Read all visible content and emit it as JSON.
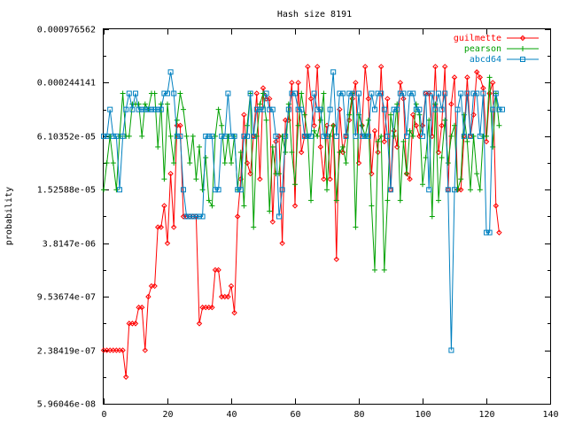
{
  "chart_data": {
    "type": "line",
    "title": "Hash size 8191",
    "xlabel": "",
    "ylabel": "probability",
    "xlim": [
      0,
      140
    ],
    "ylim_log2": [
      -24,
      -10
    ],
    "y_scale": "log2",
    "x_ticks": [
      0,
      20,
      40,
      60,
      80,
      100,
      120,
      140
    ],
    "y_ticks": [
      {
        "label": "0.000976562",
        "value": 0.000976562
      },
      {
        "label": "0.000244141",
        "value": 0.000244141
      },
      {
        "label": "6.10352e-05",
        "value": 6.10352e-05
      },
      {
        "label": "1.52588e-05",
        "value": 1.52588e-05
      },
      {
        "label": "3.8147e-06",
        "value": 3.8147e-06
      },
      {
        "label": "9.53674e-07",
        "value": 9.53674e-07
      },
      {
        "label": "2.38419e-07",
        "value": 2.38419e-07
      },
      {
        "label": "5.96046e-08",
        "value": 5.96046e-08
      }
    ],
    "grid": false,
    "legend_position": "top-right",
    "series": [
      {
        "name": "guilmette",
        "color": "#ff0000",
        "marker": "diamond",
        "x_start": 0,
        "log2_values": [
          -22,
          -22,
          -22,
          -22,
          -22,
          -22,
          -22,
          -23,
          -21,
          -21,
          -21,
          -20.4,
          -20.4,
          -22,
          -20,
          -19.6,
          -19.6,
          -17.4,
          -17.4,
          -16.6,
          -18,
          -15.4,
          -17.4,
          -13.6,
          -13.6,
          -17,
          -17,
          -17,
          -17,
          -17,
          -21,
          -20.4,
          -20.4,
          -20.4,
          -20.4,
          -19,
          -19,
          -20,
          -20,
          -20,
          -19.6,
          -20.6,
          -17,
          -15.6,
          -13.2,
          -15,
          -15.4,
          -14,
          -12.4,
          -15.6,
          -12.2,
          -12.6,
          -12.6,
          -17.2,
          -14.2,
          -14,
          -18,
          -13.4,
          -13.4,
          -12,
          -16.6,
          -12,
          -14.6,
          -14,
          -11.4,
          -12.6,
          -13.6,
          -11.4,
          -14.4,
          -15.6,
          -13.6,
          -15.6,
          -13.6,
          -18.6,
          -13,
          -14.6,
          -14,
          -13.4,
          -12.6,
          -12,
          -15,
          -13.6,
          -11.4,
          -12.6,
          -15.4,
          -13.8,
          -14.6,
          -11.4,
          -14.2,
          -12.6,
          -16,
          -13.8,
          -14.4,
          -12,
          -12.6,
          -15.4,
          -15.6,
          -13.2,
          -13.6,
          -14,
          -13.6,
          -12.4,
          -12.4,
          -14,
          -11.4,
          -14.6,
          -13.6,
          -11.4,
          -16,
          -12.8,
          -11.8,
          -16,
          -16,
          -14,
          -11.8,
          -14,
          -13.2,
          -11.6,
          -11.8,
          -12.2,
          -14.2,
          -12.4,
          -12,
          -16.6,
          -17.6
        ]
      },
      {
        "name": "pearson",
        "color": "#00a000",
        "marker": "plus",
        "x_start": 0,
        "log2_values": [
          -16,
          -15,
          -14,
          -15,
          -16,
          -14,
          -12.4,
          -14,
          -14,
          -12.8,
          -12.8,
          -12.8,
          -14,
          -12.8,
          -13,
          -12.4,
          -12.4,
          -14.4,
          -12.8,
          -15.6,
          -12.8,
          -14,
          -15,
          -13.4,
          -12.4,
          -13,
          -14,
          -15,
          -14,
          -15.6,
          -14.4,
          -16,
          -14.8,
          -16.4,
          -16.6,
          -14,
          -13,
          -13.6,
          -15,
          -14,
          -15,
          -14,
          -16,
          -14.6,
          -16.6,
          -13.6,
          -12.4,
          -17.4,
          -14,
          -12.8,
          -12.4,
          -13.4,
          -16.8,
          -14.4,
          -15.4,
          -15.4,
          -14,
          -14.6,
          -12.8,
          -14.6,
          -15.8,
          -13.6,
          -12.4,
          -13.2,
          -14,
          -16.4,
          -13.8,
          -14,
          -13.4,
          -12.4,
          -16,
          -14,
          -13.6,
          -16.4,
          -14.6,
          -14.4,
          -15,
          -13.2,
          -12.4,
          -17.4,
          -13.2,
          -13.6,
          -14,
          -13.4,
          -16.6,
          -19,
          -14.2,
          -14,
          -19,
          -16.4,
          -13.2,
          -14,
          -12.8,
          -16.4,
          -14.2,
          -15.4,
          -13.8,
          -14,
          -12.8,
          -13.2,
          -15.8,
          -14.8,
          -13.4,
          -17,
          -12.8,
          -16.4,
          -14.8,
          -13.4,
          -15,
          -14,
          -13.6,
          -16,
          -15.6,
          -13.2,
          -14.2,
          -16,
          -14,
          -15.4,
          -16,
          -14,
          -14,
          -11.8,
          -14.4,
          -12.4,
          -13.6
        ]
      },
      {
        "name": "abcd64",
        "color": "#0080c0",
        "marker": "square",
        "x_start": 0,
        "log2_values": [
          -14,
          -14,
          -13,
          -14,
          -14,
          -16,
          -14,
          -13,
          -12.4,
          -13,
          -12.4,
          -13,
          -13,
          -13,
          -13,
          -13,
          -13,
          -13,
          -13,
          -12.4,
          -12.4,
          -11.6,
          -12.4,
          -14,
          -14,
          -16,
          -17,
          -17,
          -17,
          -17,
          -17,
          -17,
          -14,
          -14,
          -14,
          -16,
          -16,
          -14,
          -14,
          -12.4,
          -14,
          -14,
          -16,
          -16,
          -14,
          -14,
          -12.4,
          -14,
          -13,
          -13,
          -13,
          -12.4,
          -13,
          -13,
          -14,
          -17,
          -16,
          -14,
          -13,
          -12.4,
          -12.4,
          -13,
          -13,
          -14,
          -14,
          -14,
          -12.4,
          -13,
          -13,
          -14,
          -14,
          -13,
          -11.6,
          -14,
          -12.4,
          -12.4,
          -14,
          -12.4,
          -12.4,
          -14,
          -12.4,
          -14,
          -14,
          -14,
          -12.4,
          -13,
          -12.4,
          -12.4,
          -13,
          -14,
          -16,
          -13,
          -13,
          -12.4,
          -12.4,
          -14,
          -12.4,
          -12.4,
          -13,
          -13,
          -14,
          -12.4,
          -16,
          -12.4,
          -13,
          -12.4,
          -13,
          -12.4,
          -16,
          -22,
          -16,
          -13,
          -12.4,
          -14,
          -12.4,
          -14,
          -12.4,
          -12.4,
          -14,
          -12.4,
          -17.6,
          -17.6,
          -13,
          -12.4,
          -13,
          -13
        ]
      }
    ]
  }
}
